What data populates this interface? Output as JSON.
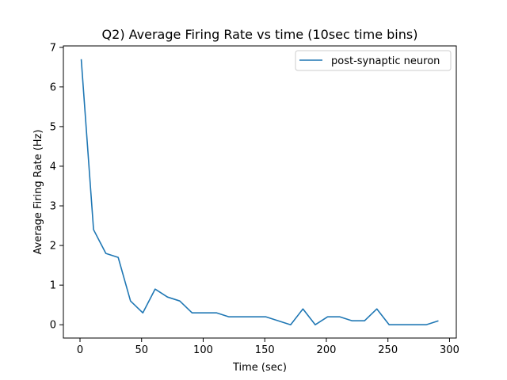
{
  "chart_data": {
    "type": "line",
    "title": "Q2) Average Firing Rate vs time  (10sec time bins)",
    "xlabel": "Time (sec)",
    "ylabel": "Average Firing Rate (Hz)",
    "xlim": [
      -13.5,
      305.5
    ],
    "ylim": [
      -0.335,
      7.035
    ],
    "xticks": [
      0,
      50,
      100,
      150,
      200,
      250,
      300
    ],
    "xtick_labels": [
      "0",
      "50",
      "100",
      "150",
      "200",
      "250",
      "300"
    ],
    "yticks": [
      0,
      1,
      2,
      3,
      4,
      5,
      6,
      7
    ],
    "ytick_labels": [
      "0",
      "1",
      "2",
      "3",
      "4",
      "5",
      "6",
      "7"
    ],
    "grid": false,
    "legend_position": "top-right",
    "series": [
      {
        "name": "post-synaptic neuron",
        "color": "#1f77b4",
        "x": [
          1,
          11,
          21,
          31,
          41,
          51,
          61,
          71,
          81,
          91,
          101,
          111,
          121,
          131,
          141,
          151,
          161,
          171,
          181,
          191,
          201,
          211,
          221,
          231,
          241,
          251,
          261,
          271,
          281,
          291
        ],
        "y": [
          6.7,
          2.4,
          1.8,
          1.7,
          0.6,
          0.3,
          0.9,
          0.7,
          0.6,
          0.3,
          0.3,
          0.3,
          0.2,
          0.2,
          0.2,
          0.2,
          0.1,
          0.0,
          0.4,
          0.0,
          0.2,
          0.2,
          0.1,
          0.1,
          0.4,
          0.0,
          0.0,
          0.0,
          0.0,
          0.1
        ]
      }
    ]
  }
}
